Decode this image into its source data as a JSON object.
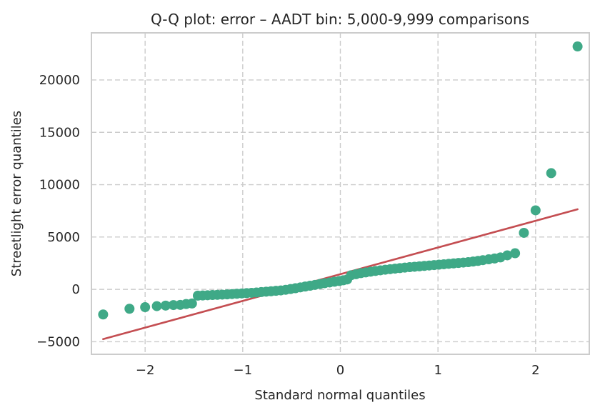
{
  "chart_data": {
    "type": "scatter",
    "title": "Q-Q plot: error – AADT bin: 5,000-9,999 comparisons",
    "xlabel": "Standard normal quantiles",
    "ylabel": "Streetlight error quantiles",
    "xlim": [
      -2.55,
      2.55
    ],
    "ylim": [
      -6200,
      24500
    ],
    "x_ticks": [
      -2,
      -1,
      0,
      1,
      2
    ],
    "x_tick_labels": [
      "−2",
      "−1",
      "0",
      "1",
      "2"
    ],
    "y_ticks": [
      -5000,
      0,
      5000,
      10000,
      15000,
      20000
    ],
    "y_tick_labels": [
      "−5000",
      "0",
      "5000",
      "10000",
      "15000",
      "20000"
    ],
    "grid": true,
    "colors": {
      "points": "#3fa987",
      "fit_line": "#c44e52",
      "grid": "#cccccc",
      "frame": "#cccccc"
    },
    "series": [
      {
        "type": "scatter",
        "points": [
          [
            -2.43,
            -2400
          ],
          [
            -2.16,
            -1850
          ],
          [
            -2.0,
            -1700
          ],
          [
            -1.88,
            -1600
          ],
          [
            -1.79,
            -1550
          ],
          [
            -1.71,
            -1500
          ],
          [
            -1.64,
            -1480
          ],
          [
            -1.58,
            -1400
          ],
          [
            -1.52,
            -1350
          ],
          [
            -1.46,
            -600
          ],
          [
            -1.41,
            -580
          ],
          [
            -1.36,
            -560
          ],
          [
            -1.31,
            -540
          ],
          [
            -1.26,
            -520
          ],
          [
            -1.21,
            -500
          ],
          [
            -1.16,
            -480
          ],
          [
            -1.11,
            -450
          ],
          [
            -1.06,
            -420
          ],
          [
            -1.01,
            -390
          ],
          [
            -0.96,
            -360
          ],
          [
            -0.91,
            -330
          ],
          [
            -0.86,
            -300
          ],
          [
            -0.81,
            -260
          ],
          [
            -0.76,
            -220
          ],
          [
            -0.71,
            -180
          ],
          [
            -0.66,
            -140
          ],
          [
            -0.61,
            -100
          ],
          [
            -0.56,
            -40
          ],
          [
            -0.51,
            30
          ],
          [
            -0.46,
            110
          ],
          [
            -0.41,
            190
          ],
          [
            -0.36,
            270
          ],
          [
            -0.31,
            350
          ],
          [
            -0.26,
            430
          ],
          [
            -0.21,
            510
          ],
          [
            -0.16,
            590
          ],
          [
            -0.11,
            660
          ],
          [
            -0.06,
            730
          ],
          [
            -0.01,
            800
          ],
          [
            0.03,
            870
          ],
          [
            0.07,
            950
          ],
          [
            0.11,
            1350
          ],
          [
            0.16,
            1450
          ],
          [
            0.21,
            1550
          ],
          [
            0.26,
            1620
          ],
          [
            0.31,
            1690
          ],
          [
            0.36,
            1760
          ],
          [
            0.41,
            1820
          ],
          [
            0.46,
            1880
          ],
          [
            0.51,
            1930
          ],
          [
            0.56,
            1980
          ],
          [
            0.61,
            2030
          ],
          [
            0.66,
            2080
          ],
          [
            0.71,
            2120
          ],
          [
            0.76,
            2160
          ],
          [
            0.81,
            2200
          ],
          [
            0.86,
            2240
          ],
          [
            0.91,
            2280
          ],
          [
            0.96,
            2320
          ],
          [
            1.01,
            2360
          ],
          [
            1.06,
            2400
          ],
          [
            1.11,
            2440
          ],
          [
            1.16,
            2480
          ],
          [
            1.21,
            2520
          ],
          [
            1.26,
            2560
          ],
          [
            1.31,
            2600
          ],
          [
            1.36,
            2660
          ],
          [
            1.41,
            2720
          ],
          [
            1.46,
            2790
          ],
          [
            1.52,
            2870
          ],
          [
            1.58,
            2950
          ],
          [
            1.64,
            3050
          ],
          [
            1.71,
            3250
          ],
          [
            1.79,
            3450
          ],
          [
            1.88,
            5400
          ],
          [
            2.0,
            7550
          ],
          [
            2.16,
            11100
          ],
          [
            2.43,
            23200
          ]
        ]
      },
      {
        "type": "line",
        "points": [
          [
            -2.43,
            -4750
          ],
          [
            2.43,
            7650
          ]
        ]
      }
    ]
  }
}
